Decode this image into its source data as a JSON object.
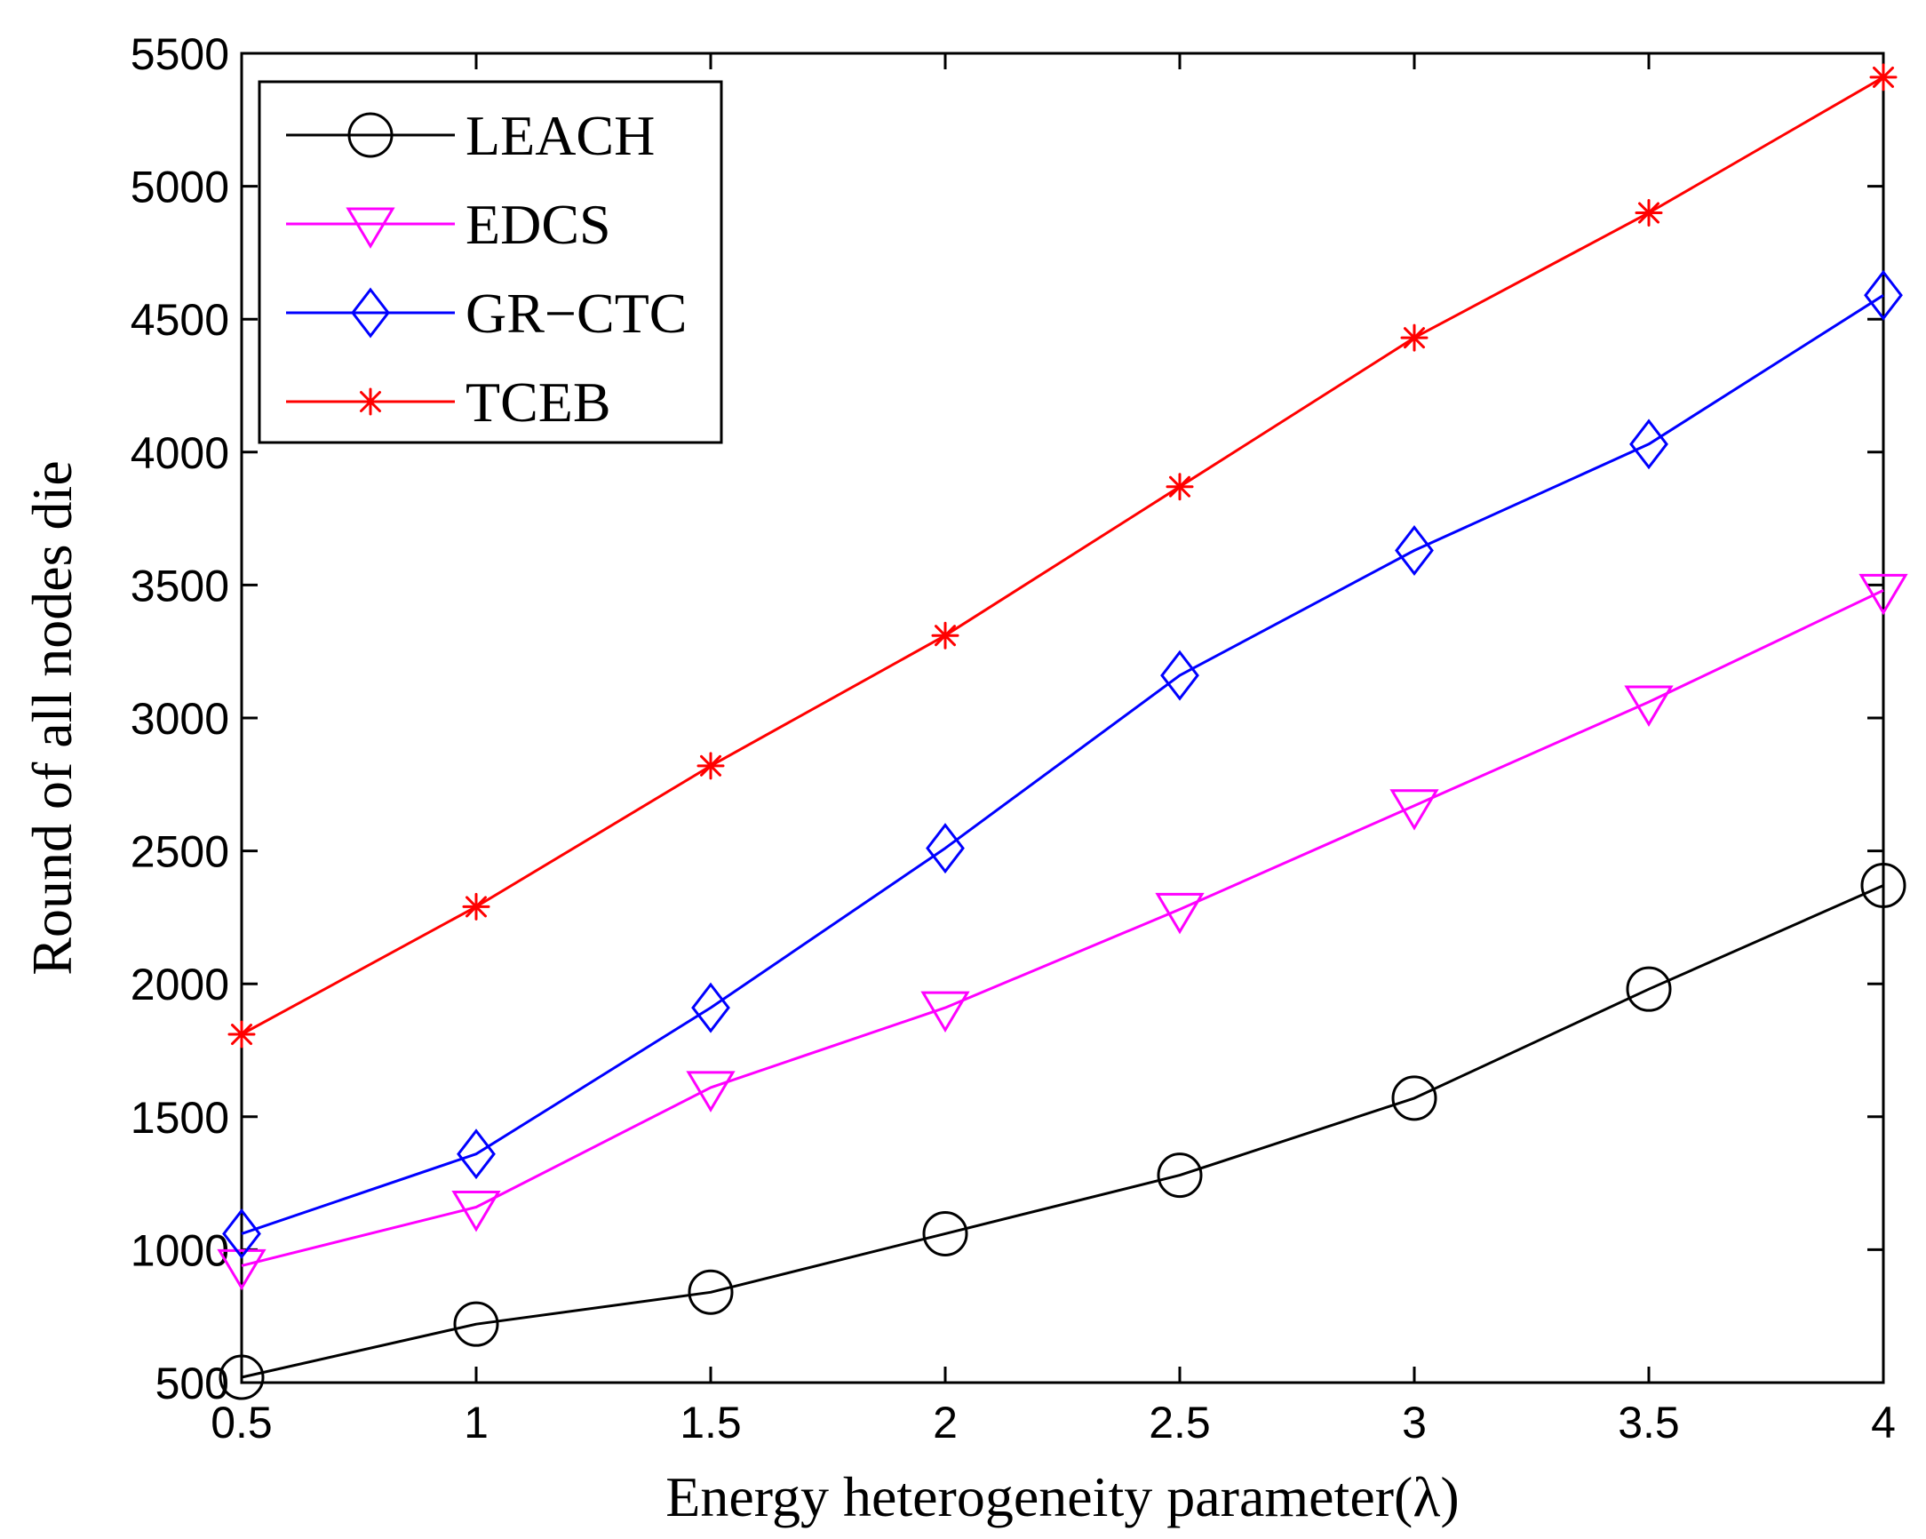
{
  "chart_data": {
    "type": "line",
    "title": "",
    "xlabel": "Energy heterogeneity parameter(λ)",
    "ylabel": "Round of all nodes die",
    "x": [
      0.5,
      1,
      1.5,
      2,
      2.5,
      3,
      3.5,
      4
    ],
    "xlim": [
      0.5,
      4
    ],
    "ylim": [
      500,
      5500
    ],
    "xticks": [
      0.5,
      1,
      1.5,
      2,
      2.5,
      3,
      3.5,
      4
    ],
    "xtick_labels": [
      "0.5",
      "1",
      "1.5",
      "2",
      "2.5",
      "3",
      "3.5",
      "4"
    ],
    "yticks": [
      500,
      1000,
      1500,
      2000,
      2500,
      3000,
      3500,
      4000,
      4500,
      5000,
      5500
    ],
    "ytick_labels": [
      "500",
      "1000",
      "1500",
      "2000",
      "2500",
      "3000",
      "3500",
      "4000",
      "4500",
      "5000",
      "5500"
    ],
    "grid": false,
    "legend_position": "top-left",
    "series": [
      {
        "name": "LEACH",
        "color": "#000000",
        "marker": "circle",
        "values": [
          520,
          720,
          840,
          1060,
          1280,
          1570,
          1980,
          2370
        ]
      },
      {
        "name": "EDCS",
        "color": "#ff00ff",
        "marker": "triangle-down",
        "values": [
          940,
          1160,
          1610,
          1910,
          2280,
          2670,
          3060,
          3480
        ]
      },
      {
        "name": "GR−CTC",
        "color": "#0000ff",
        "marker": "diamond",
        "values": [
          1060,
          1360,
          1910,
          2510,
          3160,
          3630,
          4030,
          4590
        ]
      },
      {
        "name": "TCEB",
        "color": "#ff0000",
        "marker": "asterisk",
        "values": [
          1810,
          2290,
          2820,
          3310,
          3870,
          4430,
          4900,
          5410
        ]
      }
    ]
  }
}
